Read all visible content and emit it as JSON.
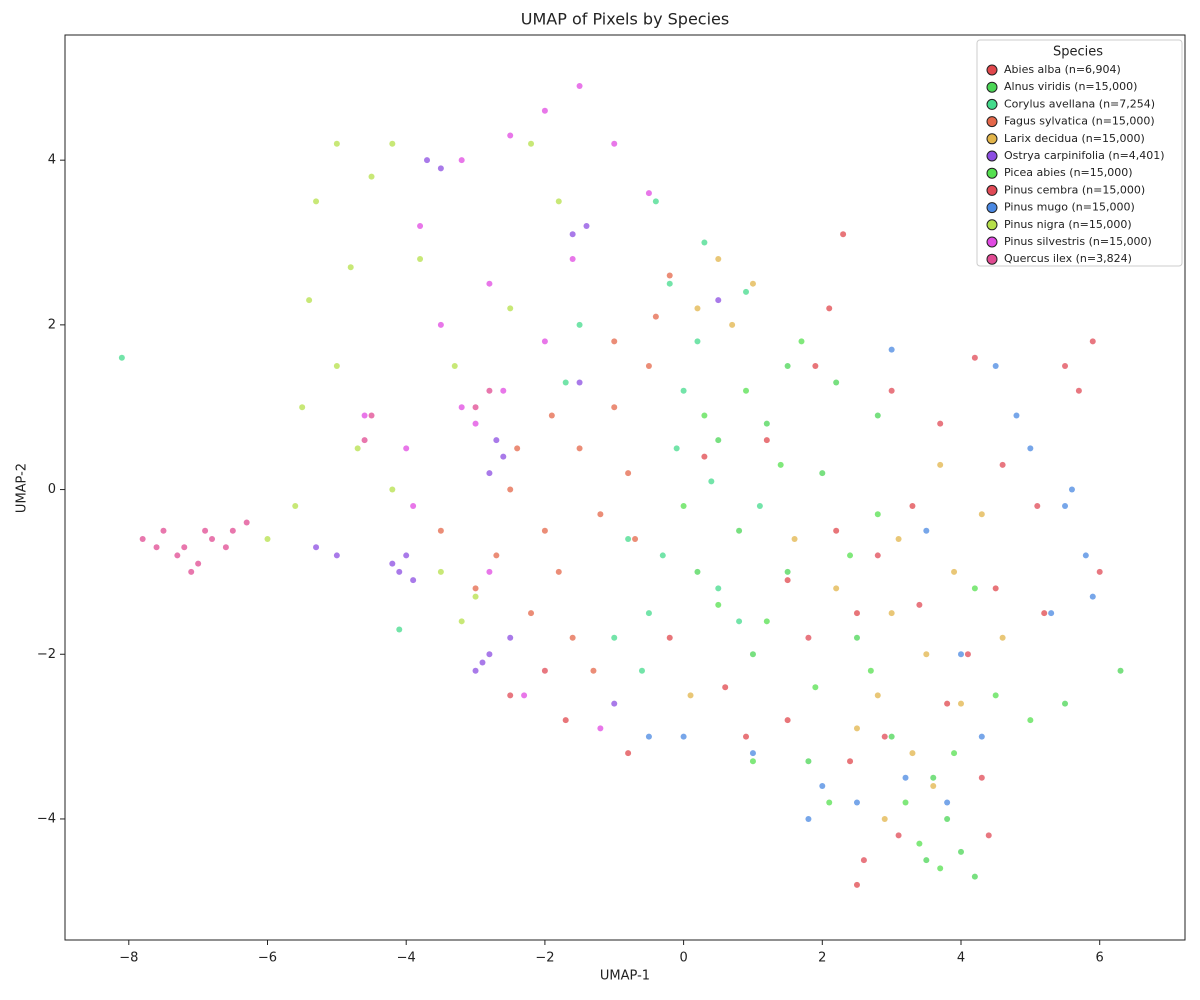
{
  "chart_data": {
    "type": "scatter",
    "title": "UMAP of Pixels by Species",
    "x_label": "UMAP-1",
    "y_label": "UMAP-2",
    "legend_title": "Species",
    "legend_position": "upper right",
    "xlim": [
      -8.92,
      7.23
    ],
    "ylim": [
      -5.47,
      5.52
    ],
    "xticks": [
      {
        "value": -8,
        "label": "−8"
      },
      {
        "value": -6,
        "label": "−6"
      },
      {
        "value": -4,
        "label": "−4"
      },
      {
        "value": -2,
        "label": "−2"
      },
      0,
      2,
      4,
      6
    ],
    "yticks": [
      {
        "value": -4,
        "label": "−4"
      },
      {
        "value": -2,
        "label": "−2"
      },
      0,
      2,
      4
    ],
    "series": [
      {
        "name": "Abies alba (n=6,904)",
        "color": "#e0474c",
        "x": [
          2.3,
          2.1,
          1.9,
          0.3,
          1.2,
          2.2,
          2.5,
          0.6,
          0.9,
          1.5,
          2.4,
          -0.8,
          -1.7,
          4.5,
          3.8,
          5.2,
          1.5,
          -0.2,
          2.5,
          3.3
        ],
        "y": [
          3.1,
          2.2,
          1.5,
          0.4,
          0.6,
          -0.5,
          -1.5,
          -2.4,
          -3.0,
          -2.8,
          -3.3,
          -3.2,
          -2.8,
          -1.2,
          -2.6,
          -1.5,
          -1.1,
          -1.8,
          -4.8,
          -0.2
        ]
      },
      {
        "name": "Alnus viridis (n=15,000)",
        "color": "#4bd656",
        "x": [
          1.5,
          1.2,
          2.0,
          0.8,
          1.5,
          2.5,
          3.0,
          3.8,
          4.0,
          3.5,
          1.0,
          0.2,
          6.3,
          5.5,
          2.2,
          3.6,
          1.8,
          0.5,
          2.8,
          4.2
        ],
        "y": [
          1.5,
          0.8,
          0.2,
          -0.5,
          -1.0,
          -1.8,
          -3.0,
          -4.0,
          -4.4,
          -4.5,
          -2.0,
          -1.0,
          -2.2,
          -2.6,
          1.3,
          -3.5,
          -3.3,
          0.6,
          0.9,
          -4.7
        ]
      },
      {
        "name": "Corylus avellana (n=7,254)",
        "color": "#44db8c",
        "x": [
          -0.4,
          0.3,
          -0.2,
          0.0,
          -0.8,
          -0.5,
          0.5,
          -0.3,
          -1.0,
          0.2,
          -1.5,
          0.4,
          -1.7,
          0.8,
          1.1,
          -0.6,
          -4.1,
          -8.1,
          0.9,
          -0.1
        ],
        "y": [
          3.5,
          3.0,
          2.5,
          1.2,
          -0.6,
          -1.5,
          -1.2,
          -0.8,
          -1.8,
          1.8,
          2.0,
          0.1,
          1.3,
          -1.6,
          -0.2,
          -2.2,
          -1.7,
          1.6,
          2.4,
          0.5
        ]
      },
      {
        "name": "Fagus sylvatica (n=15,000)",
        "color": "#e4674a",
        "x": [
          -2.5,
          -2.0,
          -1.5,
          -1.0,
          -0.5,
          -2.2,
          -1.8,
          -1.2,
          -0.8,
          -2.7,
          -1.0,
          -0.4,
          -1.6,
          -2.4,
          -0.7,
          -3.0,
          -1.3,
          -0.2,
          -3.5,
          -1.9
        ],
        "y": [
          0,
          -0.5,
          0.5,
          1.0,
          1.5,
          -1.5,
          -1.0,
          -0.3,
          0.2,
          -0.8,
          1.8,
          2.1,
          -1.8,
          0.5,
          -0.6,
          -1.2,
          -2.2,
          2.6,
          -0.5,
          0.9
        ]
      },
      {
        "name": "Larix decidua (n=15,000)",
        "color": "#e2b44a",
        "x": [
          0.5,
          1.0,
          0.2,
          3.0,
          3.5,
          2.8,
          3.3,
          3.9,
          4.3,
          2.2,
          3.6,
          2.5,
          4.0,
          0.1,
          1.6,
          3.1,
          4.6,
          0.7,
          2.9,
          3.7
        ],
        "y": [
          2.8,
          2.5,
          2.2,
          -1.5,
          -2.0,
          -2.5,
          -3.2,
          -1.0,
          -0.3,
          -1.2,
          -3.6,
          -2.9,
          -2.6,
          -2.5,
          -0.6,
          -0.6,
          -1.8,
          2.0,
          -4.0,
          0.3
        ]
      },
      {
        "name": "Ostrya carpinifolia (n=4,401)",
        "color": "#8c4de2",
        "x": [
          -3.7,
          -3.5,
          -2.7,
          -2.8,
          -3.0,
          -2.8,
          -4.1,
          -4.2,
          -5.0,
          -5.3,
          -1.4,
          -1.5,
          -2.5,
          -1.0,
          0.5,
          -3.9,
          -2.9,
          -1.6,
          -2.6,
          -4.0
        ],
        "y": [
          4.0,
          3.9,
          0.6,
          0.2,
          -2.2,
          -2.0,
          -1.0,
          -0.9,
          -0.8,
          -0.7,
          3.2,
          1.3,
          -1.8,
          -2.6,
          2.3,
          -1.1,
          -2.1,
          3.1,
          0.4,
          -0.8
        ]
      },
      {
        "name": "Picea abies (n=15,000)",
        "color": "#55e04f",
        "x": [
          1.7,
          0.9,
          1.4,
          2.4,
          0.5,
          1.9,
          2.7,
          3.2,
          3.9,
          4.5,
          0.3,
          1.0,
          2.1,
          3.4,
          5.0,
          4.2,
          0.0,
          1.2,
          2.8,
          3.7
        ],
        "y": [
          1.8,
          1.2,
          0.3,
          -0.8,
          -1.4,
          -2.4,
          -2.2,
          -3.8,
          -3.2,
          -2.5,
          0.9,
          -3.3,
          -3.8,
          -4.3,
          -2.8,
          -1.2,
          -0.2,
          -1.6,
          -0.3,
          -4.6
        ]
      },
      {
        "name": "Pinus cembra (n=15,000)",
        "color": "#e04a56",
        "x": [
          5.5,
          4.2,
          5.9,
          5.7,
          3.0,
          3.7,
          4.6,
          2.8,
          3.4,
          4.1,
          4.3,
          3.1,
          2.6,
          1.8,
          2.9,
          -2.5,
          -2.0,
          6.0,
          5.1,
          4.4
        ],
        "y": [
          1.5,
          1.6,
          1.8,
          1.2,
          1.2,
          0.8,
          0.3,
          -0.8,
          -1.4,
          -2.0,
          -3.5,
          -4.2,
          -4.5,
          -1.8,
          -3.0,
          -2.5,
          -2.2,
          -1.0,
          -0.2,
          -4.2
        ]
      },
      {
        "name": "Pinus mugo (n=15,000)",
        "color": "#4a88e2",
        "x": [
          3.0,
          4.5,
          5.0,
          5.5,
          5.8,
          5.3,
          4.8,
          3.5,
          4.0,
          3.2,
          2.5,
          1.0,
          0.0,
          -0.5,
          2.0,
          5.6,
          4.3,
          3.8,
          5.9,
          1.8
        ],
        "y": [
          1.7,
          1.5,
          0.5,
          -0.2,
          -0.8,
          -1.5,
          0.9,
          -0.5,
          -2.0,
          -3.5,
          -3.8,
          -3.2,
          -3.0,
          -3.0,
          -3.6,
          0.0,
          -3.0,
          -3.8,
          -1.3,
          -4.0
        ]
      },
      {
        "name": "Pinus nigra (n=15,000)",
        "color": "#b6e04a",
        "x": [
          -5.0,
          -5.3,
          -4.5,
          -4.2,
          -5.4,
          -5.0,
          -5.5,
          -4.7,
          -4.2,
          -3.5,
          -3.0,
          -2.2,
          -1.8,
          -3.8,
          -6.0,
          -5.6,
          -2.5,
          -3.2,
          -4.8,
          -3.3
        ],
        "y": [
          4.2,
          3.5,
          3.8,
          4.2,
          2.3,
          1.5,
          1.0,
          0.5,
          0.0,
          -1.0,
          -1.3,
          4.2,
          3.5,
          2.8,
          -0.6,
          -0.2,
          2.2,
          -1.6,
          2.7,
          1.5
        ]
      },
      {
        "name": "Pinus silvestris (n=15,000)",
        "color": "#e04ae2",
        "x": [
          -3.2,
          -2.5,
          -2.0,
          -1.5,
          -1.0,
          -3.8,
          -3.5,
          -2.8,
          -2.0,
          -3.2,
          -4.0,
          -3.9,
          -2.8,
          -2.3,
          -1.2,
          -0.5,
          -2.6,
          -4.6,
          -1.6,
          -3.0
        ],
        "y": [
          4.0,
          4.3,
          4.6,
          4.9,
          4.2,
          3.2,
          2.0,
          2.5,
          1.8,
          1.0,
          0.5,
          -0.2,
          -1.0,
          -2.5,
          -2.9,
          3.6,
          1.2,
          0.9,
          2.8,
          0.8
        ]
      },
      {
        "name": "Quercus ilex (n=3,824)",
        "color": "#e04a92",
        "x": [
          -7.8,
          -7.5,
          -7.2,
          -7.0,
          -6.8,
          -6.5,
          -6.3,
          -7.3,
          -7.6,
          -6.9,
          -7.1,
          -6.6,
          -3.0,
          -2.8,
          -4.6,
          -4.5
        ],
        "y": [
          -0.6,
          -0.5,
          -0.7,
          -0.9,
          -0.6,
          -0.5,
          -0.4,
          -0.8,
          -0.7,
          -0.5,
          -1.0,
          -0.7,
          1.0,
          1.2,
          0.6,
          0.9
        ]
      }
    ]
  }
}
